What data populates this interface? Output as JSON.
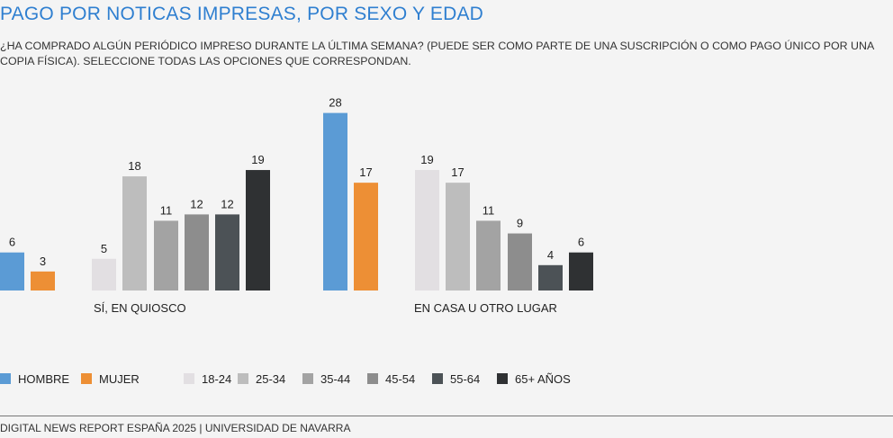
{
  "title": "PAGO POR NOTICAS IMPRESAS, POR SEXO Y EDAD",
  "subtitle": "¿HA COMPRADO ALGÚN PERIÓDICO IMPRESO DURANTE LA ÚLTIMA SEMANA? (PUEDE SER COMO PARTE DE UNA SUSCRIPCIÓN O COMO PAGO ÚNICO POR UNA COPIA FÍSICA). SELECCIONE TODAS LAS OPCIONES QUE CORRESPONDAN.",
  "footer": "DIGITAL NEWS REPORT ESPAÑA 2025 | UNIVERSIDAD DE NAVARRA",
  "legend": [
    {
      "label": "HOMBRE",
      "color": "#5b9bd5"
    },
    {
      "label": "MUJER",
      "color": "#ed8f35"
    },
    {
      "label": "18-24",
      "color": "#e2dfe2"
    },
    {
      "label": "25-34",
      "color": "#bdbdbd"
    },
    {
      "label": "35-44",
      "color": "#a3a3a3"
    },
    {
      "label": "45-54",
      "color": "#8d8d8d"
    },
    {
      "label": "55-64",
      "color": "#4c5256"
    },
    {
      "label": "65+ AÑOS",
      "color": "#2f3133"
    }
  ],
  "chart_data": {
    "type": "bar",
    "categories": [
      "SÍ, EN QUIOSCO",
      "EN CASA U OTRO LUGAR"
    ],
    "series": [
      {
        "name": "HOMBRE",
        "values": [
          6,
          28
        ]
      },
      {
        "name": "MUJER",
        "values": [
          3,
          17
        ]
      },
      {
        "name": "18-24",
        "values": [
          5,
          19
        ]
      },
      {
        "name": "25-34",
        "values": [
          18,
          17
        ]
      },
      {
        "name": "35-44",
        "values": [
          11,
          11
        ]
      },
      {
        "name": "45-54",
        "values": [
          12,
          9
        ]
      },
      {
        "name": "55-64",
        "values": [
          12,
          4
        ]
      },
      {
        "name": "65+ AÑOS",
        "values": [
          19,
          6
        ]
      }
    ],
    "ylim": [
      0,
      28
    ],
    "grid": false,
    "legend_position": "bottom"
  }
}
